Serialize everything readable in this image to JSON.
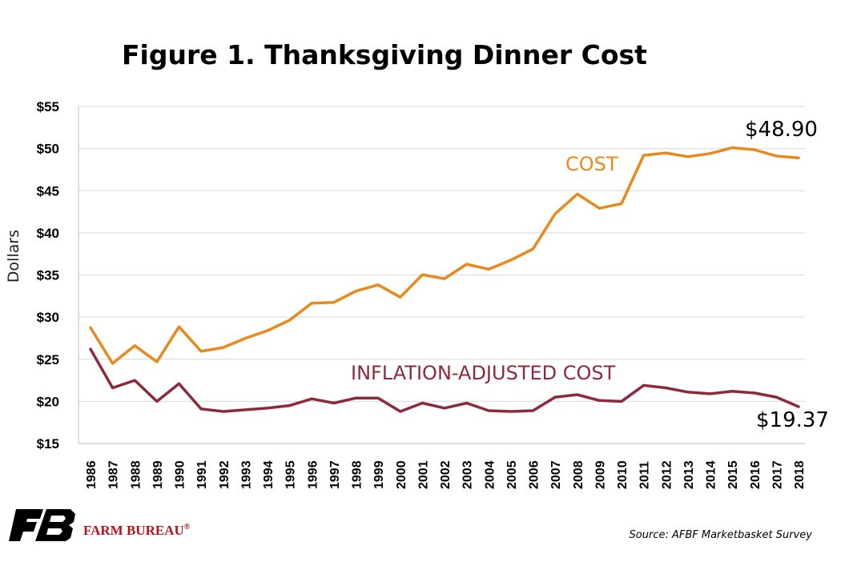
{
  "colors": {
    "cost": "#e8891e",
    "adjusted": "#8c2a3c",
    "grid": "#d9d9d9",
    "logo": "#b5121b"
  },
  "source": "Source: AFBF Marketbasket Survey",
  "logo": {
    "text": "FARM BUREAU",
    "mark": "®",
    "icon": "farm-bureau-logo-icon"
  },
  "chart_data": {
    "type": "line",
    "title": "Figure 1. Thanksgiving Dinner Cost",
    "xlabel": "",
    "ylabel": "Dollars",
    "ylim": [
      15,
      55
    ],
    "yticks": [
      15,
      20,
      25,
      30,
      35,
      40,
      45,
      50,
      55
    ],
    "ytick_labels": [
      "$15",
      "$20",
      "$25",
      "$30",
      "$35",
      "$40",
      "$45",
      "$50",
      "$55"
    ],
    "grid": true,
    "x": [
      "1986",
      "1987",
      "1988",
      "1989",
      "1990",
      "1991",
      "1992",
      "1993",
      "1994",
      "1995",
      "1996",
      "1997",
      "1998",
      "1999",
      "2000",
      "2001",
      "2002",
      "2003",
      "2004",
      "2005",
      "2006",
      "2007",
      "2008",
      "2009",
      "2010",
      "2011",
      "2012",
      "2013",
      "2014",
      "2015",
      "2016",
      "2017",
      "2018"
    ],
    "series": [
      {
        "name": "COST",
        "values": [
          28.74,
          24.51,
          26.61,
          24.7,
          28.85,
          25.95,
          26.39,
          27.49,
          28.4,
          29.64,
          31.66,
          31.75,
          33.09,
          33.83,
          32.37,
          35.04,
          34.56,
          36.28,
          35.68,
          36.78,
          38.1,
          42.26,
          44.61,
          42.91,
          43.47,
          49.2,
          49.48,
          49.04,
          49.41,
          50.11,
          49.87,
          49.12,
          48.9
        ],
        "end_label": "$48.90"
      },
      {
        "name": "INFLATION-ADJUSTED COST",
        "values": [
          26.2,
          21.6,
          22.5,
          20.0,
          22.1,
          19.1,
          18.8,
          19.0,
          19.2,
          19.5,
          20.3,
          19.8,
          20.4,
          20.4,
          18.8,
          19.8,
          19.2,
          19.8,
          18.9,
          18.8,
          18.9,
          20.5,
          20.8,
          20.1,
          20.0,
          21.9,
          21.6,
          21.1,
          20.9,
          21.2,
          21.0,
          20.5,
          19.37
        ],
        "end_label": "$19.37"
      }
    ]
  }
}
